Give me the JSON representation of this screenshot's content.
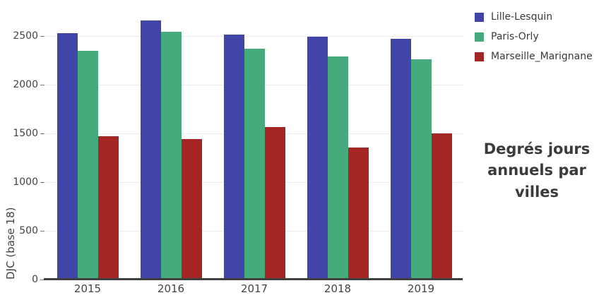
{
  "chart_data": {
    "type": "bar",
    "title": "Degrés jours annuels par villes",
    "ylabel": "DJC (base 18)",
    "xlabel": "",
    "categories": [
      "2015",
      "2016",
      "2017",
      "2018",
      "2019"
    ],
    "series": [
      {
        "name": "Lille-Lesquin",
        "color": "#4245a8",
        "values": [
          2530,
          2660,
          2515,
          2495,
          2475
        ]
      },
      {
        "name": "Paris-Orly",
        "color": "#45ab7d",
        "values": [
          2350,
          2545,
          2370,
          2295,
          2260
        ]
      },
      {
        "name": "Marseille_Marignane",
        "color": "#a32524",
        "values": [
          1470,
          1445,
          1565,
          1355,
          1500
        ]
      }
    ],
    "ylim": [
      0,
      2800
    ],
    "yticks": [
      0,
      500,
      1000,
      1500,
      2000,
      2500
    ],
    "grid": true,
    "legend_position": "top-right"
  },
  "style_colors": {
    "axis_line": "#3f3f3f",
    "grid_line": "#eaeaf0",
    "tick_text": "#444444",
    "title_text": "#3b3b3b",
    "background": "#ffffff"
  }
}
